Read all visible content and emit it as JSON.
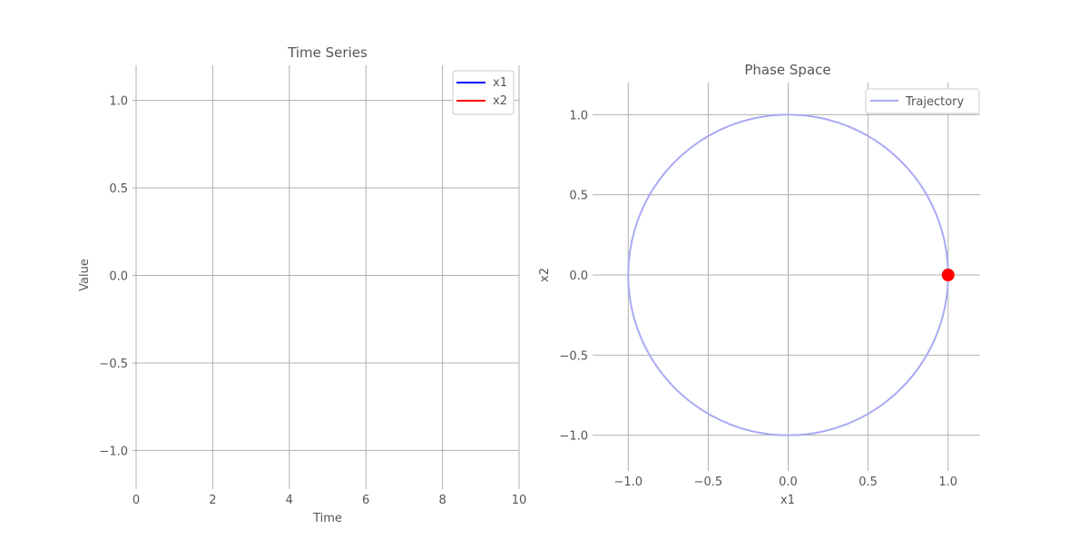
{
  "chart_data": [
    {
      "type": "line",
      "title": "Time Series",
      "xlabel": "Time",
      "ylabel": "Value",
      "xlim": [
        0,
        10
      ],
      "ylim": [
        -1.2,
        1.2
      ],
      "xticks": [
        0,
        2,
        4,
        6,
        8,
        10
      ],
      "xtick_labels": [
        "0",
        "2",
        "4",
        "6",
        "8",
        "10"
      ],
      "yticks": [
        -1.0,
        -0.5,
        0.0,
        0.5,
        1.0
      ],
      "ytick_labels": [
        "−1.0",
        "−0.5",
        "0.0",
        "0.5",
        "1.0"
      ],
      "grid": true,
      "legend_position": "top-right",
      "series": [
        {
          "name": "x1",
          "color": "#0000ff",
          "x": [],
          "y": []
        },
        {
          "name": "x2",
          "color": "#ff0000",
          "x": [],
          "y": []
        }
      ]
    },
    {
      "type": "line",
      "title": "Phase Space",
      "xlabel": "x1",
      "ylabel": "x2",
      "xlim": [
        -1.2,
        1.2
      ],
      "ylim": [
        -1.2,
        1.2
      ],
      "xticks": [
        -1.0,
        -0.5,
        0.0,
        0.5,
        1.0
      ],
      "xtick_labels": [
        "−1.0",
        "−0.5",
        "0.0",
        "0.5",
        "1.0"
      ],
      "yticks": [
        -1.0,
        -0.5,
        0.0,
        0.5,
        1.0
      ],
      "ytick_labels": [
        "−1.0",
        "−0.5",
        "0.0",
        "0.5",
        "1.0"
      ],
      "grid": true,
      "legend_position": "top-right",
      "series": [
        {
          "name": "Trajectory",
          "color": "#a9a9f5",
          "shape": "unit circle",
          "x": [
            1.0,
            0.866,
            0.5,
            0.0,
            -0.5,
            -0.866,
            -1.0,
            -0.866,
            -0.5,
            0.0,
            0.5,
            0.866,
            1.0
          ],
          "y": [
            0.0,
            0.5,
            0.866,
            1.0,
            0.866,
            0.5,
            0.0,
            -0.5,
            -0.866,
            -1.0,
            -0.866,
            -0.5,
            0.0
          ]
        }
      ],
      "current_point": {
        "x": 1.0,
        "y": 0.0,
        "color": "#ff0000"
      }
    }
  ]
}
